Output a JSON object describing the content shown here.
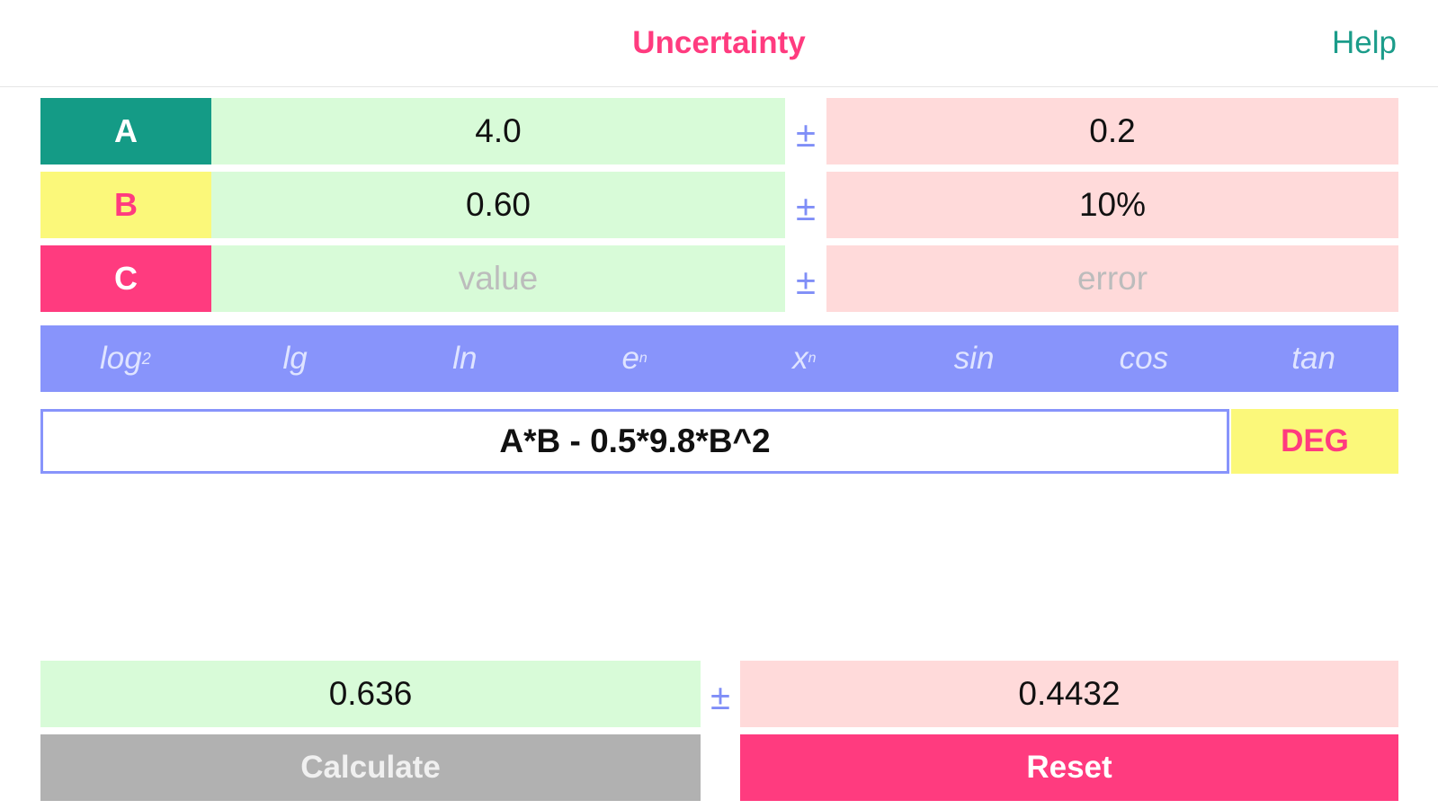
{
  "nav": {
    "title": "Uncertainty",
    "help": "Help"
  },
  "variables": [
    {
      "label": "A",
      "value": "4.0",
      "error": "0.2",
      "label_bg": "#149b86",
      "label_color": "#ffffff"
    },
    {
      "label": "B",
      "value": "0.60",
      "error": "10%",
      "label_bg": "#fbf87a",
      "label_color": "#ff3b7f"
    },
    {
      "label": "C",
      "value": "",
      "error": "",
      "label_bg": "#ff3b7f",
      "label_color": "#ffffff",
      "value_placeholder": "value",
      "error_placeholder": "error"
    }
  ],
  "plus_minus": "±",
  "functions": [
    {
      "base": "log",
      "sub": "2"
    },
    {
      "base": "lg"
    },
    {
      "base": "ln"
    },
    {
      "base": "e",
      "sup": "n"
    },
    {
      "base": "x",
      "sup": "n"
    },
    {
      "base": "sin"
    },
    {
      "base": "cos"
    },
    {
      "base": "tan"
    }
  ],
  "formula": "A*B - 0.5*9.8*B^2",
  "angle_mode": "DEG",
  "result": {
    "value": "0.636",
    "error": "0.4432"
  },
  "buttons": {
    "calculate": "Calculate",
    "reset": "Reset"
  },
  "colors": {
    "accent_pink": "#ff3b7f",
    "accent_teal": "#149b86",
    "value_bg": "#d8fbd8",
    "error_bg": "#ffdada",
    "function_bar": "#8894fb",
    "deg_bg": "#fbf87a"
  }
}
